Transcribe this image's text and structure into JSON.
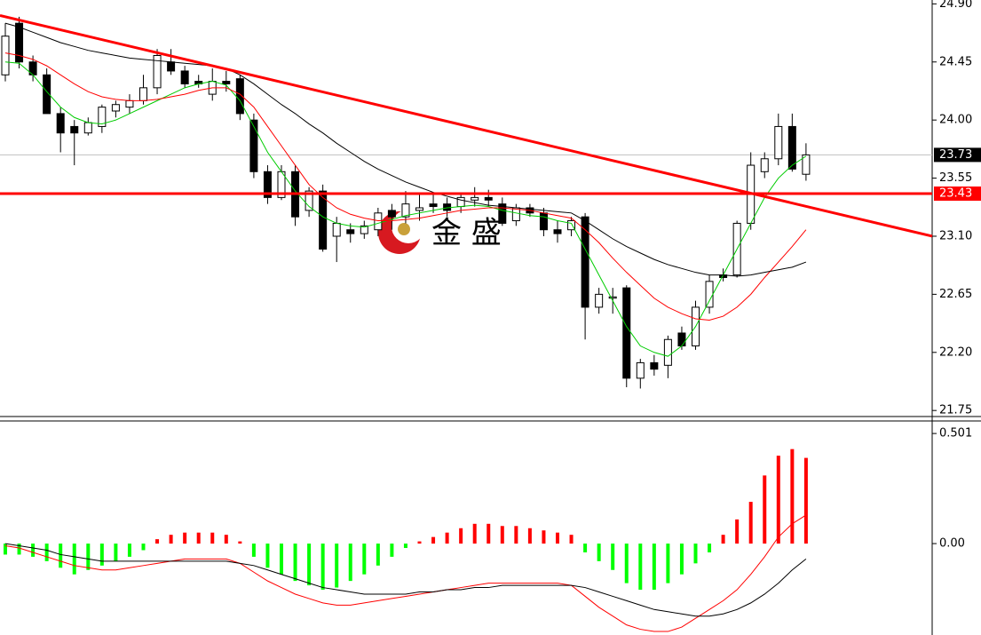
{
  "watermark": "金 盛",
  "chart_data": [
    {
      "type": "candlestick",
      "ylim": [
        21.71,
        24.93
      ],
      "yticks": [
        {
          "value": 24.9,
          "label": "24.90"
        },
        24.45,
        {
          "value": 24.0,
          "label": "24.00"
        },
        23.55,
        {
          "value": 23.1,
          "label": "23.10"
        },
        22.65,
        {
          "value": 22.2,
          "label": "22.20"
        },
        21.75
      ],
      "up_color": "#ffffff",
      "down_color": "#000000",
      "ohlc": [
        [
          24.35,
          24.75,
          24.3,
          24.65
        ],
        [
          24.75,
          24.8,
          24.4,
          24.45
        ],
        [
          24.45,
          24.5,
          24.3,
          24.35
        ],
        [
          24.35,
          24.4,
          24.05,
          24.05
        ],
        [
          24.05,
          24.1,
          23.75,
          23.9
        ],
        [
          23.95,
          24.0,
          23.65,
          23.9
        ],
        [
          23.9,
          24.02,
          23.88,
          23.98
        ],
        [
          23.95,
          24.12,
          23.9,
          24.1
        ],
        [
          24.07,
          24.15,
          24.02,
          24.12
        ],
        [
          24.1,
          24.2,
          24.05,
          24.15
        ],
        [
          24.15,
          24.35,
          24.12,
          24.25
        ],
        [
          24.25,
          24.55,
          24.2,
          24.5
        ],
        [
          24.45,
          24.55,
          24.35,
          24.38
        ],
        [
          24.38,
          24.42,
          24.25,
          24.28
        ],
        [
          24.3,
          24.35,
          24.25,
          24.28
        ],
        [
          24.2,
          24.4,
          24.15,
          24.3
        ],
        [
          24.3,
          24.38,
          24.22,
          24.28
        ],
        [
          24.32,
          24.35,
          24.0,
          24.05
        ],
        [
          24.0,
          24.05,
          23.55,
          23.6
        ],
        [
          23.6,
          23.65,
          23.35,
          23.4
        ],
        [
          23.4,
          23.65,
          23.38,
          23.6
        ],
        [
          23.6,
          23.65,
          23.18,
          23.25
        ],
        [
          23.3,
          23.48,
          23.25,
          23.45
        ],
        [
          23.45,
          23.5,
          22.98,
          23.0
        ],
        [
          23.1,
          23.25,
          22.9,
          23.2
        ],
        [
          23.15,
          23.2,
          23.05,
          23.12
        ],
        [
          23.12,
          23.22,
          23.08,
          23.18
        ],
        [
          23.15,
          23.32,
          23.1,
          23.28
        ],
        [
          23.3,
          23.35,
          23.15,
          23.25
        ],
        [
          23.25,
          23.45,
          23.2,
          23.35
        ],
        [
          23.3,
          23.42,
          23.22,
          23.32
        ],
        [
          23.35,
          23.42,
          23.28,
          23.33
        ],
        [
          23.35,
          23.4,
          23.25,
          23.3
        ],
        [
          23.33,
          23.43,
          23.28,
          23.4
        ],
        [
          23.38,
          23.48,
          23.33,
          23.4
        ],
        [
          23.4,
          23.46,
          23.33,
          23.38
        ],
        [
          23.35,
          23.4,
          23.18,
          23.2
        ],
        [
          23.22,
          23.35,
          23.18,
          23.32
        ],
        [
          23.32,
          23.35,
          23.25,
          23.28
        ],
        [
          23.28,
          23.32,
          23.1,
          23.15
        ],
        [
          23.15,
          23.22,
          23.05,
          23.12
        ],
        [
          23.15,
          23.25,
          23.1,
          23.22
        ],
        [
          23.25,
          23.28,
          22.3,
          22.55
        ],
        [
          22.55,
          22.7,
          22.5,
          22.65
        ],
        [
          22.62,
          22.7,
          22.5,
          22.63
        ],
        [
          22.7,
          22.72,
          21.93,
          22.0
        ],
        [
          22.0,
          22.15,
          21.92,
          22.12
        ],
        [
          22.12,
          22.18,
          22.02,
          22.07
        ],
        [
          22.1,
          22.33,
          22.0,
          22.3
        ],
        [
          22.35,
          22.4,
          22.22,
          22.25
        ],
        [
          22.25,
          22.6,
          22.22,
          22.55
        ],
        [
          22.55,
          22.8,
          22.5,
          22.75
        ],
        [
          22.8,
          22.85,
          22.75,
          22.78
        ],
        [
          22.8,
          23.22,
          22.78,
          23.2
        ],
        [
          23.2,
          23.75,
          23.15,
          23.65
        ],
        [
          23.6,
          23.75,
          23.55,
          23.7
        ],
        [
          23.7,
          24.05,
          23.65,
          23.95
        ],
        [
          23.95,
          24.05,
          23.6,
          23.62
        ],
        [
          23.58,
          23.82,
          23.53,
          23.73
        ]
      ],
      "series": [
        {
          "color": "#00cc00",
          "values": [
            24.45,
            24.44,
            24.35,
            24.22,
            24.1,
            24.02,
            23.98,
            23.97,
            24.0,
            24.05,
            24.1,
            24.15,
            24.2,
            24.25,
            24.28,
            24.3,
            24.27,
            24.15,
            23.95,
            23.75,
            23.6,
            23.45,
            23.33,
            23.25,
            23.2,
            23.18,
            23.17,
            23.2,
            23.23,
            23.26,
            23.28,
            23.3,
            23.32,
            23.33,
            23.34,
            23.33,
            23.3,
            23.28,
            23.26,
            23.25,
            23.22,
            23.2,
            23.0,
            22.8,
            22.6,
            22.4,
            22.25,
            22.2,
            22.17,
            22.25,
            22.4,
            22.6,
            22.8,
            23.0,
            23.2,
            23.4,
            23.55,
            23.65,
            23.72
          ]
        },
        {
          "color": "#ff0000",
          "values": [
            24.52,
            24.5,
            24.47,
            24.42,
            24.35,
            24.28,
            24.22,
            24.18,
            24.16,
            24.15,
            24.15,
            24.16,
            24.18,
            24.2,
            24.23,
            24.25,
            24.25,
            24.2,
            24.1,
            23.95,
            23.8,
            23.65,
            23.5,
            23.4,
            23.32,
            23.27,
            23.24,
            23.22,
            23.22,
            23.23,
            23.24,
            23.26,
            23.28,
            23.3,
            23.31,
            23.32,
            23.32,
            23.31,
            23.3,
            23.28,
            23.26,
            23.24,
            23.15,
            23.05,
            22.93,
            22.82,
            22.72,
            22.62,
            22.55,
            22.5,
            22.46,
            22.45,
            22.48,
            22.55,
            22.65,
            22.78,
            22.9,
            23.02,
            23.15
          ]
        },
        {
          "color": "#000000",
          "values": [
            24.75,
            24.72,
            24.68,
            24.64,
            24.6,
            24.57,
            24.54,
            24.52,
            24.5,
            24.48,
            24.47,
            24.46,
            24.45,
            24.44,
            24.43,
            24.42,
            24.4,
            24.35,
            24.28,
            24.2,
            24.12,
            24.05,
            23.97,
            23.9,
            23.82,
            23.75,
            23.68,
            23.62,
            23.57,
            23.52,
            23.48,
            23.44,
            23.41,
            23.38,
            23.36,
            23.34,
            23.33,
            23.32,
            23.31,
            23.3,
            23.29,
            23.28,
            23.22,
            23.15,
            23.08,
            23.02,
            22.97,
            22.92,
            22.88,
            22.85,
            22.82,
            22.8,
            22.8,
            22.79,
            22.8,
            22.82,
            22.84,
            22.86,
            22.9
          ]
        }
      ],
      "trendline": {
        "start": 24.81,
        "end": 23.1,
        "color": "#ff0000"
      },
      "hline": {
        "value": 23.43,
        "color": "#ff0000"
      },
      "last_price": 23.73
    },
    {
      "type": "macd",
      "ylim": [
        -0.416,
        0.554
      ],
      "yticks": [
        0.501,
        {
          "value": 0,
          "label": "0.00"
        }
      ],
      "up_color": "#ff0000",
      "down_color": "#00ff00",
      "values": [
        -0.05,
        -0.05,
        -0.06,
        -0.08,
        -0.11,
        -0.14,
        -0.12,
        -0.1,
        -0.08,
        -0.06,
        -0.03,
        0.02,
        0.04,
        0.05,
        0.05,
        0.05,
        0.04,
        0.01,
        -0.06,
        -0.11,
        -0.14,
        -0.17,
        -0.19,
        -0.21,
        -0.2,
        -0.17,
        -0.14,
        -0.1,
        -0.06,
        -0.02,
        0.01,
        0.03,
        0.05,
        0.07,
        0.09,
        0.09,
        0.08,
        0.08,
        0.07,
        0.06,
        0.05,
        0.04,
        -0.04,
        -0.08,
        -0.12,
        -0.18,
        -0.21,
        -0.21,
        -0.18,
        -0.14,
        -0.09,
        -0.04,
        0.04,
        0.11,
        0.19,
        0.31,
        0.4,
        0.43,
        0.39
      ],
      "series": [
        {
          "color": "#ff0000",
          "values": [
            -0.01,
            -0.02,
            -0.04,
            -0.06,
            -0.08,
            -0.1,
            -0.11,
            -0.12,
            -0.12,
            -0.11,
            -0.1,
            -0.09,
            -0.08,
            -0.07,
            -0.07,
            -0.07,
            -0.07,
            -0.09,
            -0.13,
            -0.17,
            -0.2,
            -0.23,
            -0.25,
            -0.27,
            -0.28,
            -0.28,
            -0.27,
            -0.26,
            -0.25,
            -0.24,
            -0.23,
            -0.22,
            -0.21,
            -0.2,
            -0.19,
            -0.18,
            -0.18,
            -0.18,
            -0.18,
            -0.18,
            -0.18,
            -0.19,
            -0.24,
            -0.29,
            -0.33,
            -0.37,
            -0.39,
            -0.4,
            -0.4,
            -0.38,
            -0.34,
            -0.3,
            -0.26,
            -0.21,
            -0.14,
            -0.06,
            0.03,
            0.09,
            0.13
          ]
        },
        {
          "color": "#000000",
          "values": [
            0,
            -0.01,
            -0.02,
            -0.03,
            -0.05,
            -0.06,
            -0.07,
            -0.08,
            -0.08,
            -0.08,
            -0.08,
            -0.08,
            -0.08,
            -0.08,
            -0.08,
            -0.08,
            -0.08,
            -0.09,
            -0.1,
            -0.12,
            -0.14,
            -0.16,
            -0.18,
            -0.2,
            -0.21,
            -0.22,
            -0.23,
            -0.23,
            -0.23,
            -0.23,
            -0.22,
            -0.22,
            -0.21,
            -0.21,
            -0.2,
            -0.2,
            -0.19,
            -0.19,
            -0.19,
            -0.19,
            -0.19,
            -0.19,
            -0.2,
            -0.22,
            -0.24,
            -0.26,
            -0.28,
            -0.3,
            -0.31,
            -0.32,
            -0.33,
            -0.33,
            -0.32,
            -0.3,
            -0.27,
            -0.23,
            -0.18,
            -0.12,
            -0.07
          ]
        }
      ]
    }
  ]
}
